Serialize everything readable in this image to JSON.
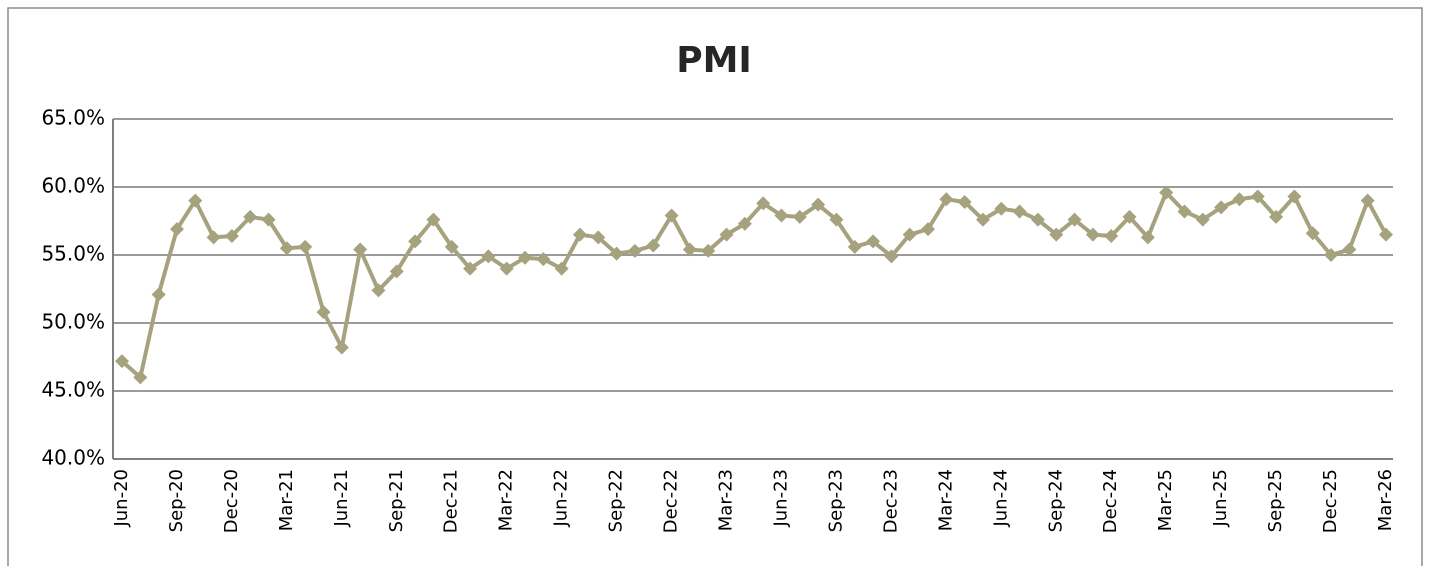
{
  "chart_data": {
    "type": "line",
    "title": "PMI",
    "categories": [
      "Jun-20",
      null,
      null,
      "Sep-20",
      null,
      null,
      "Dec-20",
      null,
      null,
      "Mar-21",
      null,
      null,
      "Jun-21",
      null,
      null,
      "Sep-21",
      null,
      null,
      "Dec-21",
      null,
      null,
      "Mar-22",
      null,
      null,
      "Jun-22",
      null,
      null,
      "Sep-22",
      null,
      null,
      "Dec-22",
      null,
      null,
      "Mar-23",
      null,
      null,
      "Jun-23",
      null,
      null,
      "Sep-23",
      null,
      null,
      "Dec-23",
      null,
      null,
      "Mar-24",
      null,
      null,
      "Jun-24",
      null,
      null,
      "Sep-24",
      null,
      null,
      "Dec-24",
      null,
      null,
      "Mar-25",
      null,
      null,
      "Jun-25",
      null,
      null,
      "Sep-25",
      null,
      null,
      "Dec-25",
      null,
      null,
      "Mar-26"
    ],
    "values": [
      47.2,
      46.0,
      52.1,
      56.9,
      59.0,
      56.3,
      56.4,
      57.8,
      57.6,
      55.5,
      55.6,
      50.8,
      48.2,
      55.4,
      52.4,
      53.8,
      56.0,
      57.6,
      55.6,
      54.0,
      54.9,
      54.0,
      54.8,
      54.7,
      54.0,
      56.5,
      56.3,
      55.1,
      55.3,
      55.7,
      57.9,
      55.4,
      55.3,
      56.5,
      57.3,
      58.8,
      57.9,
      57.8,
      58.7,
      57.6,
      55.6,
      56.0,
      54.9,
      56.5,
      56.9,
      59.1,
      58.9,
      57.6,
      58.4,
      58.2,
      57.6,
      56.5,
      57.6,
      56.5,
      56.4,
      57.8,
      56.3,
      59.6,
      58.2,
      57.6,
      58.5,
      59.1,
      59.3,
      57.8,
      59.3,
      56.6,
      55.0,
      55.4,
      59.0,
      56.5
    ],
    "color": "#a6a27e",
    "ylim": [
      40,
      65
    ],
    "yticks": [
      {
        "value": 40,
        "label": "40.0%"
      },
      {
        "value": 45,
        "label": "45.0%"
      },
      {
        "value": 50,
        "label": "50.0%"
      },
      {
        "value": 55,
        "label": "55.0%"
      },
      {
        "value": 60,
        "label": "60.0%"
      },
      {
        "value": 65,
        "label": "65.0%"
      }
    ],
    "grid": true
  }
}
